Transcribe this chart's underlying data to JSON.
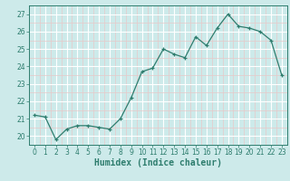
{
  "x": [
    0,
    1,
    2,
    3,
    4,
    5,
    6,
    7,
    8,
    9,
    10,
    11,
    12,
    13,
    14,
    15,
    16,
    17,
    18,
    19,
    20,
    21,
    22,
    23
  ],
  "y": [
    21.2,
    21.1,
    19.8,
    20.4,
    20.6,
    20.6,
    20.5,
    20.4,
    21.0,
    22.2,
    23.7,
    23.9,
    25.0,
    24.7,
    24.5,
    25.7,
    25.2,
    26.2,
    27.0,
    26.3,
    26.2,
    26.0,
    25.5,
    23.5
  ],
  "line_color": "#2e7d6e",
  "marker_color": "#2e7d6e",
  "bg_color": "#cdeaea",
  "major_grid_color": "#ffffff",
  "minor_grid_color": "#e8c8c8",
  "xlabel": "Humidex (Indice chaleur)",
  "xlim": [
    -0.5,
    23.5
  ],
  "ylim": [
    19.5,
    27.5
  ],
  "yticks": [
    20,
    21,
    22,
    23,
    24,
    25,
    26,
    27
  ],
  "xticks": [
    0,
    1,
    2,
    3,
    4,
    5,
    6,
    7,
    8,
    9,
    10,
    11,
    12,
    13,
    14,
    15,
    16,
    17,
    18,
    19,
    20,
    21,
    22,
    23
  ],
  "tick_label_color": "#2e7d6e",
  "tick_fontsize": 5.5,
  "xlabel_fontsize": 7.0
}
